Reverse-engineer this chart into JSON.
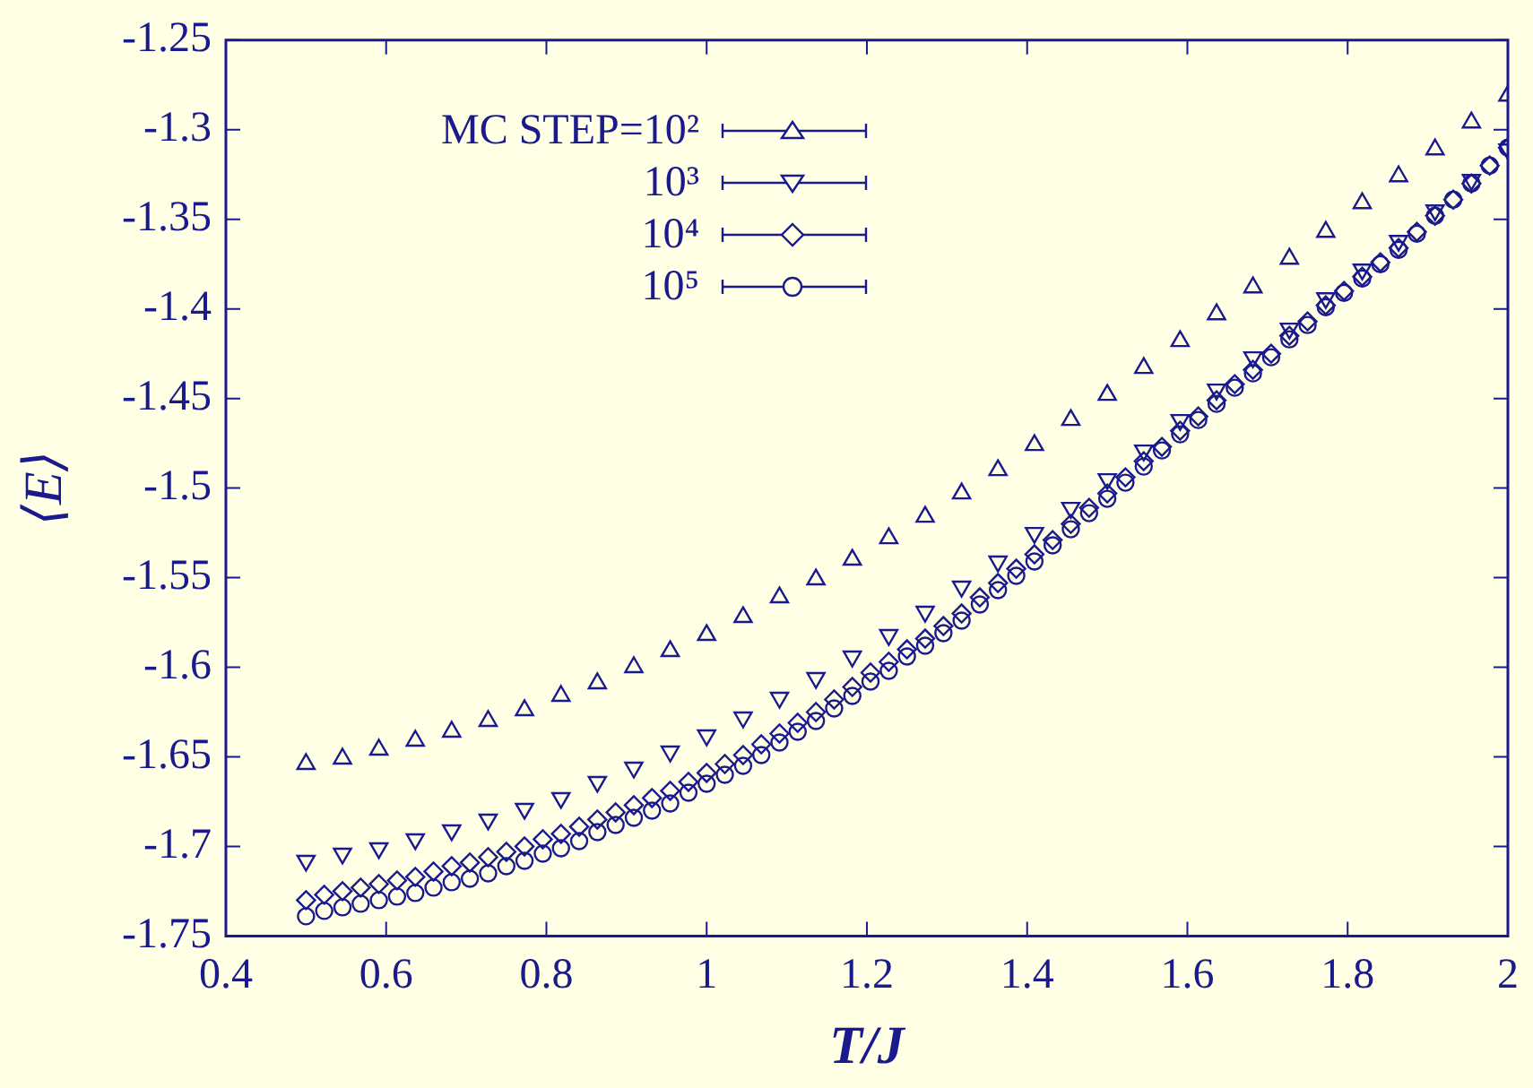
{
  "chart_data": {
    "type": "scatter",
    "xlabel": "T/J",
    "ylabel": "⟨E⟩",
    "xlim": [
      0.4,
      2
    ],
    "xticks": [
      0.4,
      0.6,
      0.8,
      1,
      1.2,
      1.4,
      1.6,
      1.8,
      2
    ],
    "ylim": [
      -1.75,
      -1.25
    ],
    "yticks": [
      -1.75,
      -1.7,
      -1.65,
      -1.6,
      -1.55,
      -1.5,
      -1.45,
      -1.4,
      -1.35,
      -1.3,
      -1.25
    ],
    "grid": false,
    "legend": "top left",
    "series": [
      {
        "name": "MC STEP=10²",
        "color": "#1a1a8c",
        "marker": "triangle",
        "x": [
          0.5,
          0.5455,
          0.5909,
          0.6364,
          0.6818,
          0.7273,
          0.7727,
          0.8182,
          0.8636,
          0.9091,
          0.9545,
          1.0,
          1.0455,
          1.0909,
          1.1364,
          1.1818,
          1.2273,
          1.2727,
          1.3182,
          1.3636,
          1.4091,
          1.4545,
          1.5,
          1.5455,
          1.5909,
          1.6364,
          1.6818,
          1.7273,
          1.7727,
          1.8182,
          1.8636,
          1.9091,
          1.9545,
          2.0
        ],
        "values": [
          -1.654,
          -1.651,
          -1.646,
          -1.641,
          -1.636,
          -1.63,
          -1.624,
          -1.616,
          -1.609,
          -1.6,
          -1.591,
          -1.582,
          -1.572,
          -1.561,
          -1.551,
          -1.54,
          -1.528,
          -1.516,
          -1.503,
          -1.49,
          -1.476,
          -1.462,
          -1.448,
          -1.433,
          -1.418,
          -1.403,
          -1.388,
          -1.372,
          -1.357,
          -1.341,
          -1.326,
          -1.311,
          -1.296,
          -1.281
        ]
      },
      {
        "name": "10³",
        "color": "#1a1a8c",
        "marker": "triangle-down",
        "x": [
          0.5,
          0.5455,
          0.5909,
          0.6364,
          0.6818,
          0.7273,
          0.7727,
          0.8182,
          0.8636,
          0.9091,
          0.9545,
          1.0,
          1.0455,
          1.0909,
          1.1364,
          1.1818,
          1.2273,
          1.2727,
          1.3182,
          1.3636,
          1.4091,
          1.4545,
          1.5,
          1.5455,
          1.5909,
          1.6364,
          1.6818,
          1.7273,
          1.7727,
          1.8182,
          1.8636,
          1.9091,
          1.9545,
          2.0
        ],
        "values": [
          -1.708,
          -1.704,
          -1.701,
          -1.696,
          -1.691,
          -1.685,
          -1.679,
          -1.673,
          -1.664,
          -1.656,
          -1.647,
          -1.638,
          -1.628,
          -1.617,
          -1.606,
          -1.594,
          -1.582,
          -1.569,
          -1.555,
          -1.541,
          -1.525,
          -1.511,
          -1.495,
          -1.479,
          -1.462,
          -1.445,
          -1.427,
          -1.411,
          -1.394,
          -1.378,
          -1.362,
          -1.345,
          -1.328,
          -1.311
        ]
      },
      {
        "name": "10⁴",
        "color": "#1a1a8c",
        "marker": "diamond",
        "x": [
          0.5,
          0.5227,
          0.5455,
          0.5682,
          0.5909,
          0.6136,
          0.6364,
          0.6591,
          0.6818,
          0.7045,
          0.7273,
          0.75,
          0.7727,
          0.7955,
          0.8182,
          0.8409,
          0.8636,
          0.8864,
          0.9091,
          0.9318,
          0.9545,
          0.9773,
          1.0,
          1.0227,
          1.0455,
          1.0682,
          1.0909,
          1.1136,
          1.1364,
          1.1591,
          1.1818,
          1.2045,
          1.2273,
          1.25,
          1.2727,
          1.2955,
          1.3182,
          1.3409,
          1.3636,
          1.3864,
          1.4091,
          1.4318,
          1.4545,
          1.4773,
          1.5,
          1.5227,
          1.5455,
          1.5682,
          1.5909,
          1.6136,
          1.6364,
          1.6591,
          1.6818,
          1.7045,
          1.7273,
          1.75,
          1.7727,
          1.7955,
          1.8182,
          1.8409,
          1.8636,
          1.8864,
          1.9091,
          1.9318,
          1.9545,
          1.9773,
          2.0
        ],
        "values": [
          -1.73,
          -1.727,
          -1.725,
          -1.723,
          -1.721,
          -1.719,
          -1.717,
          -1.714,
          -1.711,
          -1.709,
          -1.706,
          -1.703,
          -1.7,
          -1.696,
          -1.693,
          -1.689,
          -1.685,
          -1.681,
          -1.677,
          -1.673,
          -1.669,
          -1.664,
          -1.659,
          -1.654,
          -1.649,
          -1.643,
          -1.637,
          -1.631,
          -1.625,
          -1.618,
          -1.611,
          -1.603,
          -1.597,
          -1.59,
          -1.584,
          -1.577,
          -1.57,
          -1.561,
          -1.553,
          -1.545,
          -1.537,
          -1.529,
          -1.52,
          -1.511,
          -1.503,
          -1.494,
          -1.485,
          -1.477,
          -1.468,
          -1.46,
          -1.451,
          -1.442,
          -1.434,
          -1.425,
          -1.415,
          -1.407,
          -1.398,
          -1.39,
          -1.382,
          -1.374,
          -1.366,
          -1.357,
          -1.348,
          -1.339,
          -1.33,
          -1.32,
          -1.31
        ]
      },
      {
        "name": "10⁵",
        "color": "#1a1a8c",
        "marker": "circle",
        "x": [
          0.5,
          0.5227,
          0.5455,
          0.5682,
          0.5909,
          0.6136,
          0.6364,
          0.6591,
          0.6818,
          0.7045,
          0.7273,
          0.75,
          0.7727,
          0.7955,
          0.8182,
          0.8409,
          0.8636,
          0.8864,
          0.9091,
          0.9318,
          0.9545,
          0.9773,
          1.0,
          1.0227,
          1.0455,
          1.0682,
          1.0909,
          1.1136,
          1.1364,
          1.1591,
          1.1818,
          1.2045,
          1.2273,
          1.25,
          1.2727,
          1.2955,
          1.3182,
          1.3409,
          1.3636,
          1.3864,
          1.4091,
          1.4318,
          1.4545,
          1.4773,
          1.5,
          1.5227,
          1.5455,
          1.5682,
          1.5909,
          1.6136,
          1.6364,
          1.6591,
          1.6818,
          1.7045,
          1.7273,
          1.75,
          1.7727,
          1.7955,
          1.8182,
          1.8409,
          1.8636,
          1.8864,
          1.9091,
          1.9318,
          1.9545,
          1.9773,
          2.0
        ],
        "values": [
          -1.739,
          -1.736,
          -1.734,
          -1.732,
          -1.73,
          -1.728,
          -1.726,
          -1.723,
          -1.72,
          -1.718,
          -1.715,
          -1.711,
          -1.708,
          -1.704,
          -1.701,
          -1.697,
          -1.692,
          -1.688,
          -1.684,
          -1.68,
          -1.676,
          -1.67,
          -1.665,
          -1.66,
          -1.655,
          -1.649,
          -1.642,
          -1.636,
          -1.63,
          -1.623,
          -1.616,
          -1.608,
          -1.602,
          -1.594,
          -1.588,
          -1.581,
          -1.574,
          -1.565,
          -1.557,
          -1.549,
          -1.541,
          -1.532,
          -1.523,
          -1.514,
          -1.506,
          -1.497,
          -1.488,
          -1.479,
          -1.47,
          -1.462,
          -1.453,
          -1.444,
          -1.436,
          -1.427,
          -1.417,
          -1.409,
          -1.399,
          -1.391,
          -1.383,
          -1.375,
          -1.367,
          -1.358,
          -1.348,
          -1.339,
          -1.33,
          -1.32,
          -1.31
        ]
      }
    ]
  }
}
